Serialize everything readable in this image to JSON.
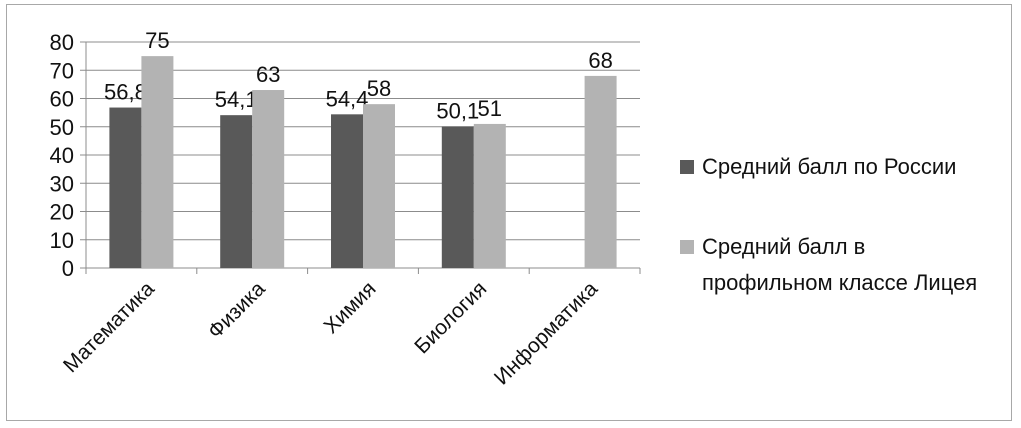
{
  "chart_data": {
    "type": "bar",
    "categories": [
      "Математика",
      "Физика",
      "Химия",
      "Биология",
      "Информатика"
    ],
    "series": [
      {
        "name": "Средний балл по России",
        "values": [
          56.8,
          54.1,
          54.4,
          50.1,
          null
        ],
        "labels": [
          "56,8",
          "54,1",
          "54,4",
          "50,1",
          ""
        ],
        "color": "#595959"
      },
      {
        "name": "Средний балл в профильном классе Лицея",
        "values": [
          75,
          63,
          58,
          51,
          68
        ],
        "labels": [
          "75",
          "63",
          "58",
          "51",
          "68"
        ],
        "color": "#b3b3b3"
      }
    ],
    "ylim": [
      0,
      80
    ],
    "yticks": [
      0,
      10,
      20,
      30,
      40,
      50,
      60,
      70,
      80
    ],
    "grid": true,
    "legend": "right",
    "legend_lines": [
      [
        "Средний балл по России"
      ],
      [
        "Средний балл в",
        "профильном классе Лицея"
      ]
    ]
  }
}
